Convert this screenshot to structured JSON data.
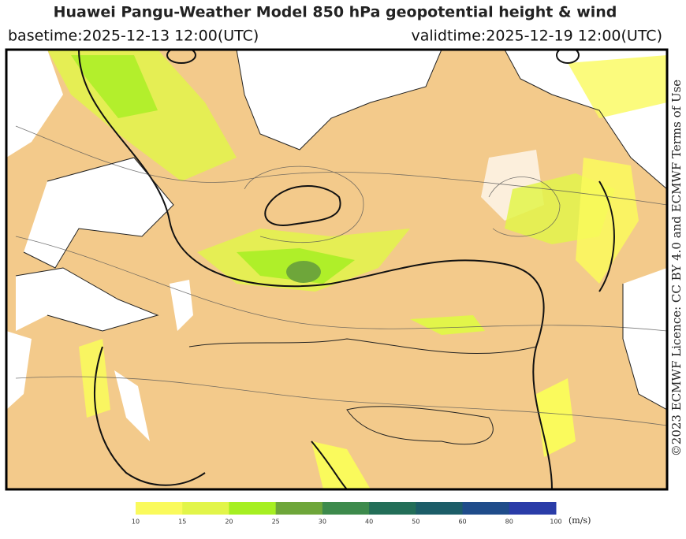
{
  "header": {
    "title": "Huawei Pangu-Weather Model 850 hPa geopotential height & wind",
    "basetime": "basetime:2025-12-13 12:00(UTC)",
    "validtime": "validtime:2025-12-19 12:00(UTC)"
  },
  "license": "©2023 ECMWF Licence: CC BY 4.0 and ECMWF Terms of Use",
  "colorbar": {
    "ticks": [
      10,
      15,
      20,
      25,
      30,
      40,
      50,
      60,
      80,
      100
    ],
    "colors": [
      "#fafa5c",
      "#e2f54a",
      "#a6ef22",
      "#6ea63a",
      "#3d8a4c",
      "#236e58",
      "#1c5d68",
      "#1f4c8a",
      "#2a3ca8"
    ],
    "unit": "(m/s)"
  }
}
